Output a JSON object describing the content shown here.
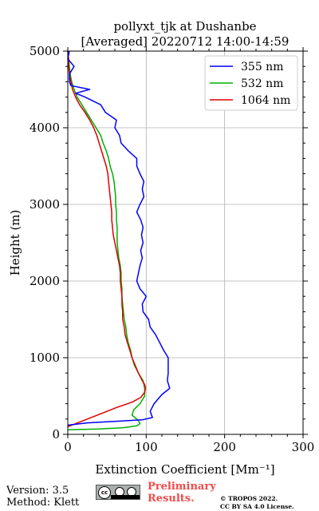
{
  "chart_data": {
    "type": "line",
    "title_line1": "pollyxt_tjk at Dushanbe",
    "title_line2": "[Averaged] 20220712 14:00-14:59",
    "xlabel": "Extinction Coefficient [Mm⁻¹]",
    "ylabel": "Height (m)",
    "xlim": [
      0,
      300
    ],
    "ylim": [
      0,
      5000
    ],
    "xticks": [
      "0",
      "100",
      "200",
      "300"
    ],
    "yticks": [
      "0",
      "1000",
      "2000",
      "3000",
      "4000",
      "5000"
    ],
    "grid": true,
    "legend_position": "top-right",
    "series": [
      {
        "name": "355 nm",
        "color": "#0000ff",
        "points": [
          [
            0,
            120
          ],
          [
            25,
            150
          ],
          [
            60,
            170
          ],
          [
            95,
            190
          ],
          [
            108,
            220
          ],
          [
            105,
            300
          ],
          [
            110,
            400
          ],
          [
            120,
            520
          ],
          [
            130,
            600
          ],
          [
            127,
            700
          ],
          [
            128,
            800
          ],
          [
            128,
            900
          ],
          [
            128,
            1000
          ],
          [
            122,
            1100
          ],
          [
            117,
            1200
          ],
          [
            112,
            1300
          ],
          [
            105,
            1400
          ],
          [
            103,
            1500
          ],
          [
            96,
            1600
          ],
          [
            95,
            1700
          ],
          [
            100,
            1800
          ],
          [
            92,
            1900
          ],
          [
            88,
            2000
          ],
          [
            90,
            2100
          ],
          [
            92,
            2200
          ],
          [
            95,
            2300
          ],
          [
            93,
            2400
          ],
          [
            96,
            2500
          ],
          [
            94,
            2600
          ],
          [
            96,
            2700
          ],
          [
            93,
            2800
          ],
          [
            88,
            2900
          ],
          [
            92,
            3000
          ],
          [
            97,
            3100
          ],
          [
            95,
            3200
          ],
          [
            97,
            3300
          ],
          [
            92,
            3400
          ],
          [
            88,
            3500
          ],
          [
            88,
            3600
          ],
          [
            77,
            3700
          ],
          [
            68,
            3800
          ],
          [
            66,
            3900
          ],
          [
            60,
            4000
          ],
          [
            62,
            4100
          ],
          [
            48,
            4200
          ],
          [
            42,
            4300
          ],
          [
            22,
            4400
          ],
          [
            10,
            4450
          ],
          [
            28,
            4500
          ],
          [
            4,
            4550
          ],
          [
            2,
            4600
          ],
          [
            2,
            4700
          ],
          [
            8,
            4800
          ],
          [
            0,
            4900
          ],
          [
            2,
            5000
          ]
        ]
      },
      {
        "name": "532 nm",
        "color": "#00b000",
        "points": [
          [
            0,
            60
          ],
          [
            40,
            70
          ],
          [
            70,
            85
          ],
          [
            88,
            110
          ],
          [
            92,
            140
          ],
          [
            90,
            180
          ],
          [
            82,
            250
          ],
          [
            84,
            320
          ],
          [
            92,
            400
          ],
          [
            98,
            500
          ],
          [
            98,
            600
          ],
          [
            96,
            700
          ],
          [
            90,
            800
          ],
          [
            85,
            900
          ],
          [
            82,
            1000
          ],
          [
            80,
            1100
          ],
          [
            77,
            1200
          ],
          [
            75,
            1300
          ],
          [
            74,
            1400
          ],
          [
            72,
            1500
          ],
          [
            71,
            1600
          ],
          [
            70,
            1700
          ],
          [
            69,
            1800
          ],
          [
            69,
            1900
          ],
          [
            68,
            2000
          ],
          [
            68,
            2100
          ],
          [
            67,
            2200
          ],
          [
            65,
            2300
          ],
          [
            64,
            2400
          ],
          [
            63,
            2500
          ],
          [
            63,
            2600
          ],
          [
            63,
            2700
          ],
          [
            62,
            2800
          ],
          [
            62,
            2900
          ],
          [
            61,
            3000
          ],
          [
            61,
            3100
          ],
          [
            60,
            3200
          ],
          [
            59,
            3300
          ],
          [
            57,
            3400
          ],
          [
            54,
            3500
          ],
          [
            52,
            3600
          ],
          [
            49,
            3700
          ],
          [
            45,
            3800
          ],
          [
            42,
            3900
          ],
          [
            36,
            4000
          ],
          [
            30,
            4100
          ],
          [
            24,
            4200
          ],
          [
            18,
            4300
          ],
          [
            12,
            4400
          ],
          [
            8,
            4500
          ],
          [
            5,
            4600
          ],
          [
            3,
            4700
          ],
          [
            2,
            4800
          ],
          [
            1,
            4900
          ],
          [
            0,
            5000
          ]
        ]
      },
      {
        "name": "1064 nm",
        "color": "#dd0000",
        "points": [
          [
            0,
            100
          ],
          [
            10,
            140
          ],
          [
            25,
            200
          ],
          [
            45,
            280
          ],
          [
            62,
            350
          ],
          [
            82,
            420
          ],
          [
            93,
            480
          ],
          [
            98,
            550
          ],
          [
            99,
            600
          ],
          [
            98,
            650
          ],
          [
            95,
            700
          ],
          [
            90,
            800
          ],
          [
            86,
            900
          ],
          [
            82,
            1000
          ],
          [
            79,
            1100
          ],
          [
            76,
            1200
          ],
          [
            73,
            1300
          ],
          [
            72,
            1400
          ],
          [
            70,
            1500
          ],
          [
            70,
            1600
          ],
          [
            69,
            1700
          ],
          [
            69,
            1800
          ],
          [
            68,
            1900
          ],
          [
            67,
            2000
          ],
          [
            67,
            2100
          ],
          [
            66,
            2200
          ],
          [
            64,
            2300
          ],
          [
            62,
            2400
          ],
          [
            60,
            2500
          ],
          [
            58,
            2600
          ],
          [
            57,
            2700
          ],
          [
            56,
            2800
          ],
          [
            56,
            2900
          ],
          [
            55,
            3000
          ],
          [
            54,
            3100
          ],
          [
            53,
            3200
          ],
          [
            52,
            3300
          ],
          [
            51,
            3400
          ],
          [
            49,
            3500
          ],
          [
            46,
            3600
          ],
          [
            43,
            3700
          ],
          [
            40,
            3800
          ],
          [
            37,
            3900
          ],
          [
            33,
            4000
          ],
          [
            28,
            4100
          ],
          [
            22,
            4200
          ],
          [
            15,
            4300
          ],
          [
            10,
            4400
          ],
          [
            6,
            4500
          ],
          [
            4,
            4600
          ],
          [
            2,
            4700
          ],
          [
            1,
            4800
          ],
          [
            1,
            4900
          ],
          [
            0,
            5000
          ]
        ]
      }
    ]
  },
  "footer": {
    "version": "Version: 3.5",
    "method": "Method: Klett",
    "license_badge_text": "cc",
    "prelim_line1": "Preliminary",
    "prelim_line2": "Results.",
    "copyright_line1": "© TROPOS 2022.",
    "copyright_line2": "CC BY SA 4.0 License."
  }
}
